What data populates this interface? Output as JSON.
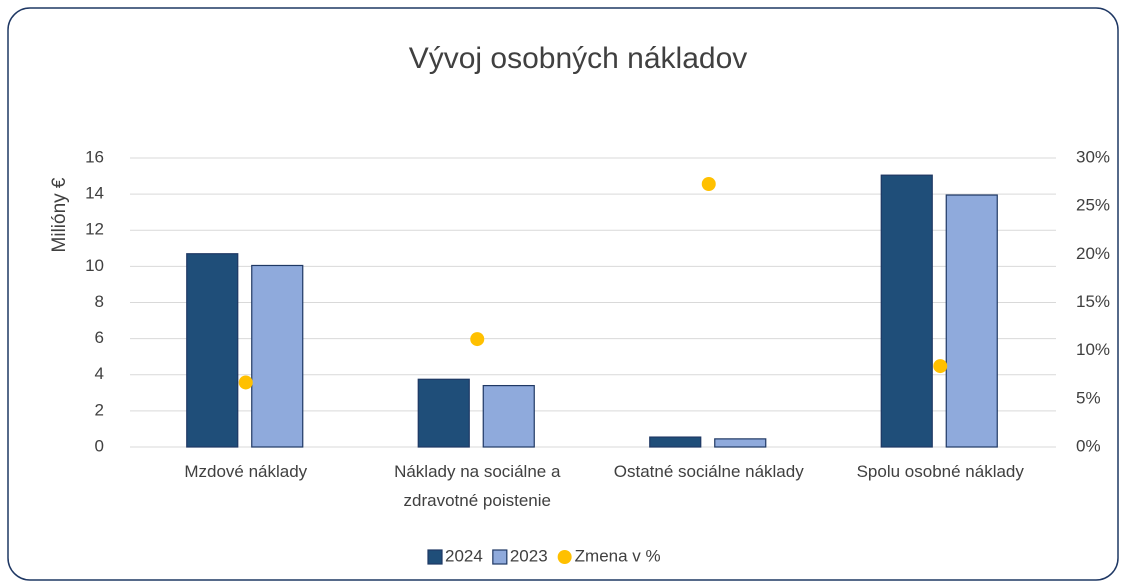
{
  "chart_data": {
    "type": "bar",
    "title": "Vývoj osobných nákladov",
    "y_label": "Milióny €",
    "categories": [
      "Mzdové náklady",
      "Náklady na sociálne a zdravotné poistenie",
      "Ostatné sociálne náklady",
      "Spolu osobné náklady"
    ],
    "series": [
      {
        "name": "2024",
        "color": "#1f4e79",
        "type": "bar",
        "values": [
          10.7,
          3.75,
          0.55,
          15.05
        ]
      },
      {
        "name": "2023",
        "color": "#8faadc",
        "type": "bar",
        "values": [
          10.05,
          3.4,
          0.45,
          13.95
        ]
      },
      {
        "name": "Zmena v %",
        "color": "#ffc000",
        "type": "scatter",
        "axis": "y2",
        "values": [
          6.7,
          11.2,
          27.3,
          8.4
        ]
      }
    ],
    "ylim": [
      0,
      16
    ],
    "yticks": [
      0,
      2,
      4,
      6,
      8,
      10,
      12,
      14,
      16
    ],
    "y2lim": [
      0,
      30
    ],
    "y2ticks": [
      {
        "value": 0,
        "label": "0%"
      },
      {
        "value": 5,
        "label": "5%"
      },
      {
        "value": 10,
        "label": "10%"
      },
      {
        "value": 15,
        "label": "15%"
      },
      {
        "value": 20,
        "label": "20%"
      },
      {
        "value": 25,
        "label": "25%"
      },
      {
        "value": 30,
        "label": "30%"
      }
    ],
    "grid": true,
    "legend": "bottom"
  }
}
